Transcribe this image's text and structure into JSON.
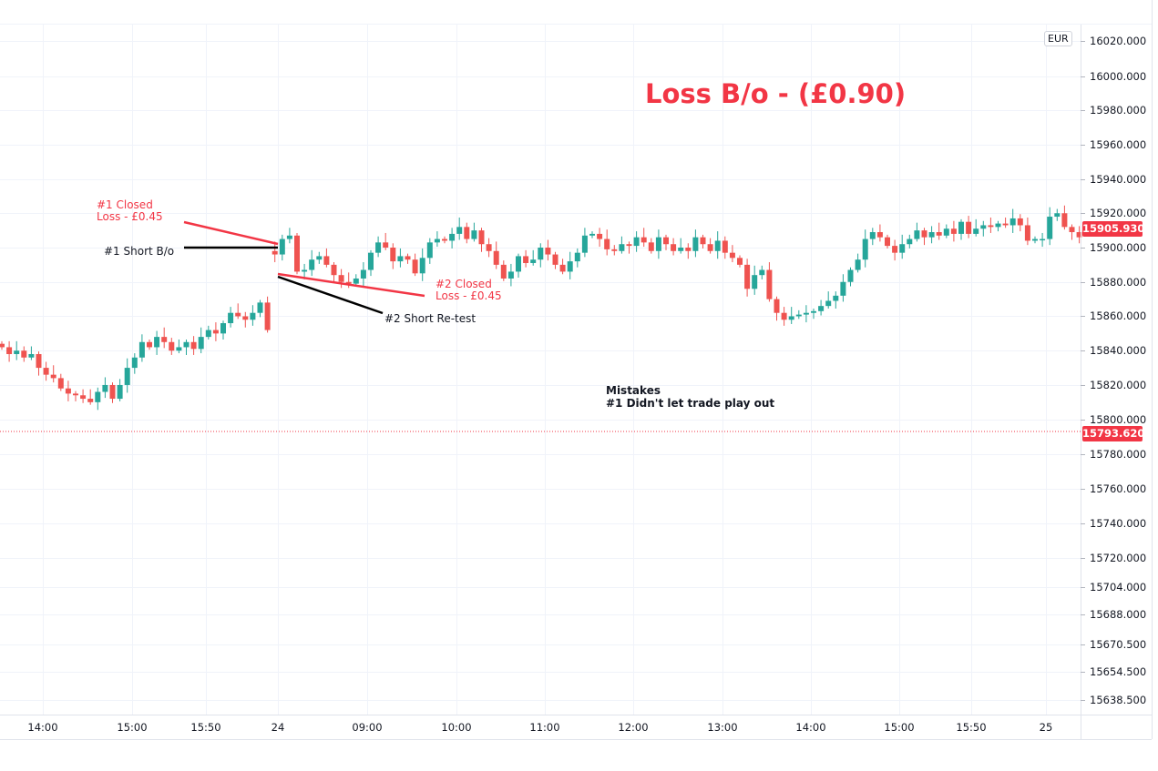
{
  "currency_badge": "EUR",
  "headline": "Loss B/o - (£0.90)",
  "annotations": {
    "closed1_line1": "#1 Closed",
    "closed1_line2": "Loss - £0.45",
    "short1": "#1 Short B/o",
    "closed2_line1": "#2 Closed",
    "closed2_line2": "Loss - £0.45",
    "short2": "#2 Short Re-test",
    "mistakes_title": "Mistakes",
    "mistakes_1": "#1 Didn't let trade play out"
  },
  "colors": {
    "up": "#26a69a",
    "down": "#ef5350",
    "accent": "#f23645",
    "grid": "#f0f3fa"
  },
  "chart_data": {
    "type": "candlestick",
    "title": "Loss B/o - (£0.90)",
    "x_tick_labels": [
      "14:00",
      "15:00",
      "15:50",
      "24",
      "09:00",
      "10:00",
      "11:00",
      "12:00",
      "13:00",
      "14:00",
      "15:00",
      "15:50",
      "25"
    ],
    "y_tick_labels": [
      "16020.000",
      "16000.000",
      "15980.000",
      "15960.000",
      "15940.000",
      "15920.000",
      "15900.000",
      "15880.000",
      "15860.000",
      "15840.000",
      "15820.000",
      "15800.000",
      "15780.000",
      "15760.000",
      "15740.000",
      "15720.000",
      "15704.000",
      "15688.000",
      "15670.500",
      "15654.500",
      "15638.500"
    ],
    "last_price": "15905.930",
    "marked_price": "15793.620",
    "first_open": 15844,
    "closes": [
      15842,
      15838,
      15840,
      15836,
      15838,
      15830,
      15826,
      15824,
      15818,
      15815,
      15814,
      15812,
      15810,
      15816,
      15820,
      15812,
      15820,
      15830,
      15836,
      15845,
      15842,
      15848,
      15845,
      15840,
      15842,
      15845,
      15841,
      15848,
      15852,
      15850,
      15856,
      15862,
      15860,
      15858,
      15862,
      15868,
      15852,
      15896,
      15905,
      15907,
      15886,
      15887,
      15893,
      15895,
      15890,
      15884,
      15880,
      15879,
      15882,
      15887,
      15897,
      15903,
      15900,
      15892,
      15895,
      15893,
      15885,
      15894,
      15903,
      15905,
      15904,
      15908,
      15912,
      15905,
      15910,
      15902,
      15898,
      15890,
      15882,
      15886,
      15895,
      15891,
      15893,
      15900,
      15896,
      15890,
      15886,
      15892,
      15897,
      15907,
      15908,
      15905,
      15899,
      15898,
      15902,
      15901,
      15906,
      15903,
      15898,
      15906,
      15902,
      15898,
      15900,
      15898,
      15906,
      15902,
      15898,
      15904,
      15897,
      15894,
      15890,
      15876,
      15884,
      15887,
      15870,
      15862,
      15858,
      15860,
      15861,
      15862,
      15863,
      15866,
      15869,
      15872,
      15880,
      15887,
      15893,
      15905,
      15909,
      15906,
      15901,
      15897,
      15902,
      15905,
      15910,
      15906,
      15909,
      15907,
      15911,
      15908,
      15915,
      15908,
      15911,
      15913,
      15912,
      15914,
      15913,
      15917,
      15913,
      15904,
      15905,
      15905,
      15918,
      15920,
      15912,
      15909,
      15906
    ]
  }
}
